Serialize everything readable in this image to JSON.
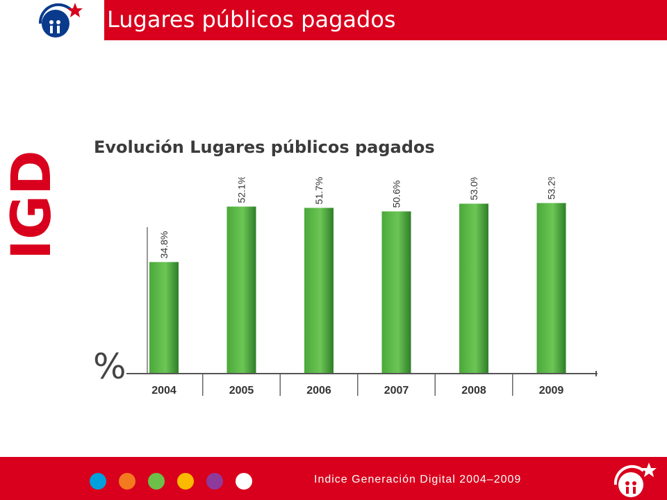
{
  "header": {
    "title": "Lugares públicos pagados"
  },
  "side_logo": {
    "text": "IGD"
  },
  "chart_data": {
    "type": "bar",
    "title": "Evolución Lugares públicos pagados",
    "ylabel": "%",
    "categories": [
      "2004",
      "2005",
      "2006",
      "2007",
      "2008",
      "2009"
    ],
    "values": [
      34.8,
      52.1,
      51.7,
      50.6,
      53.0,
      53.2
    ],
    "data_labels": [
      "34.8%",
      "52.1%",
      "51.7%",
      "50.6%",
      "53.0%",
      "53.2%"
    ],
    "ylim": [
      0,
      60
    ],
    "bar_color": "#5cb848",
    "grid": false
  },
  "footer": {
    "text": "Indice Generación Digital 2004–2009",
    "dot_colors": [
      "#00a0dc",
      "#f47a20",
      "#6cc04a",
      "#fbb900",
      "#8e3a9b",
      "#ffffff"
    ]
  },
  "brand": {
    "red": "#d8001c",
    "blue": "#0a3a8c"
  }
}
